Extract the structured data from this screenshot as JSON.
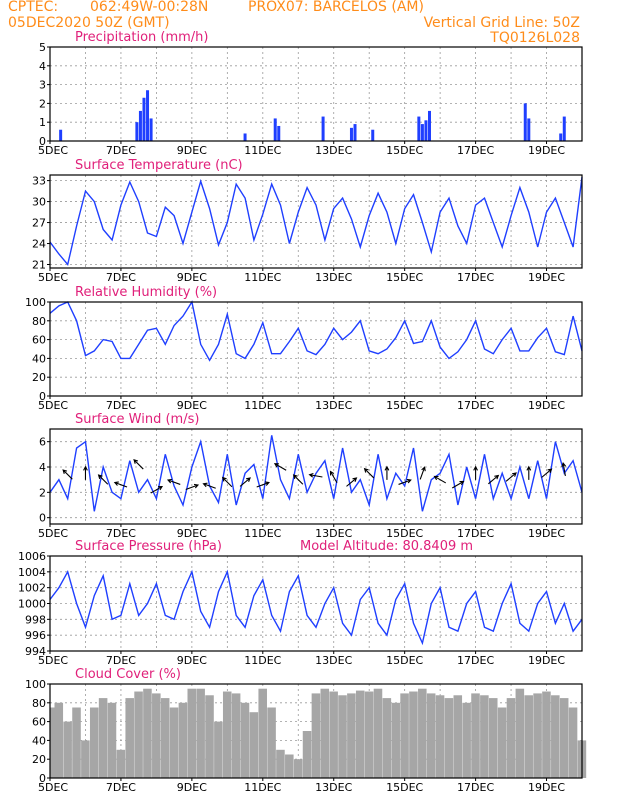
{
  "header": {
    "source": "CPTEC:",
    "coords": "062:49W-00:28N",
    "station": "PROX07: BARCELOS (AM)",
    "init": "05DEC2020 50Z (GMT)",
    "vgrid_label": "Vertical Grid Line: 50Z",
    "model_code": "TQ0126L028"
  },
  "x_axis": {
    "start_day": 5,
    "end_day": 20,
    "ticks": [
      "5DEC",
      "7DEC",
      "9DEC",
      "11DEC",
      "13DEC",
      "15DEC",
      "17DEC",
      "19DEC"
    ]
  },
  "colors": {
    "header": "#ff8c1a",
    "panel_title": "#e0207a",
    "series": "#1f3fff",
    "cloud": "#a6a6a6"
  },
  "chart_data": [
    {
      "type": "bar",
      "id": "precip",
      "title": "Precipitation (mm/h)",
      "ylim": [
        0,
        5
      ],
      "yticks": [
        0,
        1,
        2,
        3,
        4,
        5
      ],
      "x": [
        5.3,
        7.45,
        7.55,
        7.65,
        7.75,
        7.85,
        10.5,
        11.35,
        11.45,
        12.7,
        13.5,
        13.6,
        14.1,
        15.4,
        15.5,
        15.6,
        15.7,
        18.4,
        18.5,
        19.4,
        19.5
      ],
      "values": [
        0.6,
        1.0,
        1.6,
        2.3,
        2.7,
        1.2,
        0.4,
        1.2,
        0.8,
        1.3,
        0.7,
        0.9,
        0.6,
        1.3,
        0.9,
        1.1,
        1.6,
        2.0,
        1.2,
        0.4,
        1.3
      ]
    },
    {
      "type": "line",
      "id": "temp",
      "title": "Surface Temperature (nC)",
      "ylim": [
        20.5,
        33.8
      ],
      "yticks": [
        21,
        24,
        27,
        30,
        33
      ],
      "x": [
        5.0,
        5.25,
        5.5,
        5.75,
        6.0,
        6.25,
        6.5,
        6.75,
        7.0,
        7.25,
        7.5,
        7.75,
        8.0,
        8.25,
        8.5,
        8.75,
        9.0,
        9.25,
        9.5,
        9.75,
        10.0,
        10.25,
        10.5,
        10.75,
        11.0,
        11.25,
        11.5,
        11.75,
        12.0,
        12.25,
        12.5,
        12.75,
        13.0,
        13.25,
        13.5,
        13.75,
        14.0,
        14.25,
        14.5,
        14.75,
        15.0,
        15.25,
        15.5,
        15.75,
        16.0,
        16.25,
        16.5,
        16.75,
        17.0,
        17.25,
        17.5,
        17.75,
        18.0,
        18.25,
        18.5,
        18.75,
        19.0,
        19.25,
        19.5,
        19.75,
        20.0
      ],
      "values": [
        24.2,
        22.5,
        21.0,
        26.5,
        31.5,
        30.0,
        26.0,
        24.5,
        29.5,
        32.8,
        30.0,
        25.5,
        25.0,
        29.2,
        28.0,
        24.0,
        28.5,
        32.9,
        29.0,
        23.8,
        27.0,
        32.5,
        30.5,
        24.5,
        28.2,
        32.5,
        29.5,
        24.0,
        28.5,
        32.0,
        29.5,
        24.5,
        29.0,
        30.5,
        27.5,
        23.5,
        28.0,
        31.2,
        28.5,
        24.0,
        29.0,
        31.0,
        27.0,
        22.8,
        28.5,
        30.5,
        26.5,
        24.0,
        29.5,
        30.5,
        27.0,
        23.5,
        28.0,
        32.0,
        28.5,
        23.5,
        28.5,
        30.5,
        27.0,
        23.5,
        33.5
      ]
    },
    {
      "type": "line",
      "id": "rh",
      "title": "Relative Humidity (%)",
      "ylim": [
        0,
        100
      ],
      "yticks": [
        0,
        20,
        40,
        60,
        80,
        100
      ],
      "x": [
        5.0,
        5.25,
        5.5,
        5.75,
        6.0,
        6.25,
        6.5,
        6.75,
        7.0,
        7.25,
        7.5,
        7.75,
        8.0,
        8.25,
        8.5,
        8.75,
        9.0,
        9.25,
        9.5,
        9.75,
        10.0,
        10.25,
        10.5,
        10.75,
        11.0,
        11.25,
        11.5,
        11.75,
        12.0,
        12.25,
        12.5,
        12.75,
        13.0,
        13.25,
        13.5,
        13.75,
        14.0,
        14.25,
        14.5,
        14.75,
        15.0,
        15.25,
        15.5,
        15.75,
        16.0,
        16.25,
        16.5,
        16.75,
        17.0,
        17.25,
        17.5,
        17.75,
        18.0,
        18.25,
        18.5,
        18.75,
        19.0,
        19.25,
        19.5,
        19.75,
        20.0
      ],
      "values": [
        88,
        96,
        100,
        80,
        43,
        48,
        60,
        58,
        40,
        40,
        55,
        70,
        72,
        55,
        75,
        85,
        100,
        55,
        38,
        55,
        87,
        45,
        40,
        55,
        78,
        45,
        45,
        58,
        72,
        48,
        44,
        55,
        72,
        60,
        68,
        80,
        48,
        45,
        50,
        62,
        80,
        56,
        58,
        80,
        52,
        40,
        47,
        60,
        80,
        50,
        45,
        60,
        72,
        48,
        48,
        62,
        72,
        47,
        44,
        85,
        48
      ]
    },
    {
      "type": "line",
      "id": "wind",
      "title": "Surface Wind (m/s)",
      "ylim": [
        -0.5,
        7
      ],
      "yticks": [
        0,
        2,
        4,
        6
      ],
      "x": [
        5.0,
        5.25,
        5.5,
        5.75,
        6.0,
        6.25,
        6.5,
        6.75,
        7.0,
        7.25,
        7.5,
        7.75,
        8.0,
        8.25,
        8.5,
        8.75,
        9.0,
        9.25,
        9.5,
        9.75,
        10.0,
        10.25,
        10.5,
        10.75,
        11.0,
        11.25,
        11.5,
        11.75,
        12.0,
        12.25,
        12.5,
        12.75,
        13.0,
        13.25,
        13.5,
        13.75,
        14.0,
        14.25,
        14.5,
        14.75,
        15.0,
        15.25,
        15.5,
        15.75,
        16.0,
        16.25,
        16.5,
        16.75,
        17.0,
        17.25,
        17.5,
        17.75,
        18.0,
        18.25,
        18.5,
        18.75,
        19.0,
        19.25,
        19.5,
        19.75,
        20.0
      ],
      "values": [
        2.0,
        3.0,
        1.5,
        5.5,
        6.0,
        0.5,
        4.0,
        2.0,
        1.5,
        4.5,
        2.0,
        3.0,
        1.5,
        5.0,
        2.5,
        1.0,
        4.0,
        6.0,
        2.5,
        1.2,
        5.0,
        1.0,
        3.5,
        4.2,
        1.5,
        6.5,
        3.0,
        1.5,
        5.0,
        2.0,
        3.5,
        4.5,
        1.5,
        5.5,
        2.0,
        3.0,
        1.0,
        5.0,
        1.5,
        3.5,
        2.5,
        5.5,
        0.5,
        3.0,
        3.5,
        5.0,
        1.0,
        4.0,
        1.5,
        5.0,
        1.5,
        3.5,
        1.5,
        4.0,
        1.5,
        4.5,
        1.5,
        6.0,
        3.5,
        4.5,
        2.0
      ],
      "arrows": {
        "x": [
          5.5,
          6.0,
          6.5,
          7.0,
          7.5,
          8.0,
          8.5,
          9.0,
          9.5,
          10.0,
          10.5,
          11.0,
          11.5,
          12.0,
          12.5,
          13.0,
          13.5,
          14.0,
          14.5,
          15.0,
          15.5,
          16.0,
          16.5,
          17.0,
          17.5,
          18.0,
          18.5,
          19.0,
          19.5
        ],
        "dir_deg": [
          45,
          90,
          45,
          20,
          45,
          150,
          20,
          160,
          20,
          45,
          140,
          160,
          30,
          45,
          10,
          60,
          140,
          45,
          90,
          160,
          110,
          30,
          150,
          90,
          140,
          140,
          90,
          140,
          80
        ],
        "y": [
          3.4,
          3.5,
          3.0,
          2.6,
          4.2,
          2.2,
          2.8,
          2.4,
          2.5,
          2.8,
          2.8,
          2.6,
          4.0,
          3.0,
          3.3,
          3.2,
          2.8,
          3.5,
          3.5,
          2.8,
          3.5,
          3.0,
          2.6,
          3.5,
          3.0,
          3.2,
          3.5,
          3.5,
          3.8
        ]
      }
    },
    {
      "type": "line",
      "id": "pres",
      "title": "Surface Pressure (hPa)",
      "note_label": "Model Altitude: 80.8409 m",
      "ylim": [
        994,
        1006
      ],
      "yticks": [
        994,
        996,
        998,
        1000,
        1002,
        1004,
        1006
      ],
      "x": [
        5.0,
        5.25,
        5.5,
        5.75,
        6.0,
        6.25,
        6.5,
        6.75,
        7.0,
        7.25,
        7.5,
        7.75,
        8.0,
        8.25,
        8.5,
        8.75,
        9.0,
        9.25,
        9.5,
        9.75,
        10.0,
        10.25,
        10.5,
        10.75,
        11.0,
        11.25,
        11.5,
        11.75,
        12.0,
        12.25,
        12.5,
        12.75,
        13.0,
        13.25,
        13.5,
        13.75,
        14.0,
        14.25,
        14.5,
        14.75,
        15.0,
        15.25,
        15.5,
        15.75,
        16.0,
        16.25,
        16.5,
        16.75,
        17.0,
        17.25,
        17.5,
        17.75,
        18.0,
        18.25,
        18.5,
        18.75,
        19.0,
        19.25,
        19.5,
        19.75,
        20.0
      ],
      "values": [
        1000.5,
        1002.0,
        1004.0,
        1000.0,
        997.0,
        1001.0,
        1003.5,
        998.0,
        998.5,
        1002.5,
        998.5,
        1000.0,
        1002.5,
        998.5,
        998.0,
        1001.5,
        1004.0,
        999.0,
        997.0,
        1001.5,
        1004.0,
        998.5,
        997.0,
        1001.0,
        1003.0,
        998.5,
        996.5,
        1001.5,
        1003.5,
        998.5,
        997.0,
        1000.0,
        1002.0,
        997.5,
        996.0,
        1000.5,
        1002.0,
        997.5,
        996.0,
        1000.5,
        1002.5,
        997.5,
        995.0,
        1000.0,
        1002.0,
        997.0,
        996.5,
        1000.0,
        1001.5,
        997.0,
        996.5,
        1000.0,
        1002.5,
        997.5,
        996.5,
        1000.0,
        1001.5,
        997.5,
        1000.0,
        996.5,
        998.0
      ]
    },
    {
      "type": "bar",
      "id": "cloud",
      "title": "Cloud Cover (%)",
      "ylim": [
        0,
        100
      ],
      "yticks": [
        0,
        20,
        40,
        60,
        80,
        100
      ],
      "x": [
        5.0,
        5.25,
        5.5,
        5.75,
        6.0,
        6.25,
        6.5,
        6.75,
        7.0,
        7.25,
        7.5,
        7.75,
        8.0,
        8.25,
        8.5,
        8.75,
        9.0,
        9.25,
        9.5,
        9.75,
        10.0,
        10.25,
        10.5,
        10.75,
        11.0,
        11.25,
        11.5,
        11.75,
        12.0,
        12.25,
        12.5,
        12.75,
        13.0,
        13.25,
        13.5,
        13.75,
        14.0,
        14.25,
        14.5,
        14.75,
        15.0,
        15.25,
        15.5,
        15.75,
        16.0,
        16.25,
        16.5,
        16.75,
        17.0,
        17.25,
        17.5,
        17.75,
        18.0,
        18.25,
        18.5,
        18.75,
        19.0,
        19.25,
        19.5,
        19.75,
        20.0
      ],
      "values": [
        75,
        80,
        60,
        75,
        40,
        75,
        85,
        80,
        30,
        85,
        92,
        95,
        90,
        85,
        75,
        80,
        95,
        95,
        88,
        60,
        92,
        90,
        80,
        70,
        95,
        75,
        30,
        25,
        20,
        50,
        90,
        95,
        92,
        88,
        90,
        93,
        92,
        95,
        85,
        80,
        90,
        92,
        95,
        90,
        88,
        85,
        88,
        80,
        90,
        88,
        85,
        75,
        85,
        95,
        88,
        90,
        92,
        88,
        85,
        75,
        40
      ]
    }
  ]
}
